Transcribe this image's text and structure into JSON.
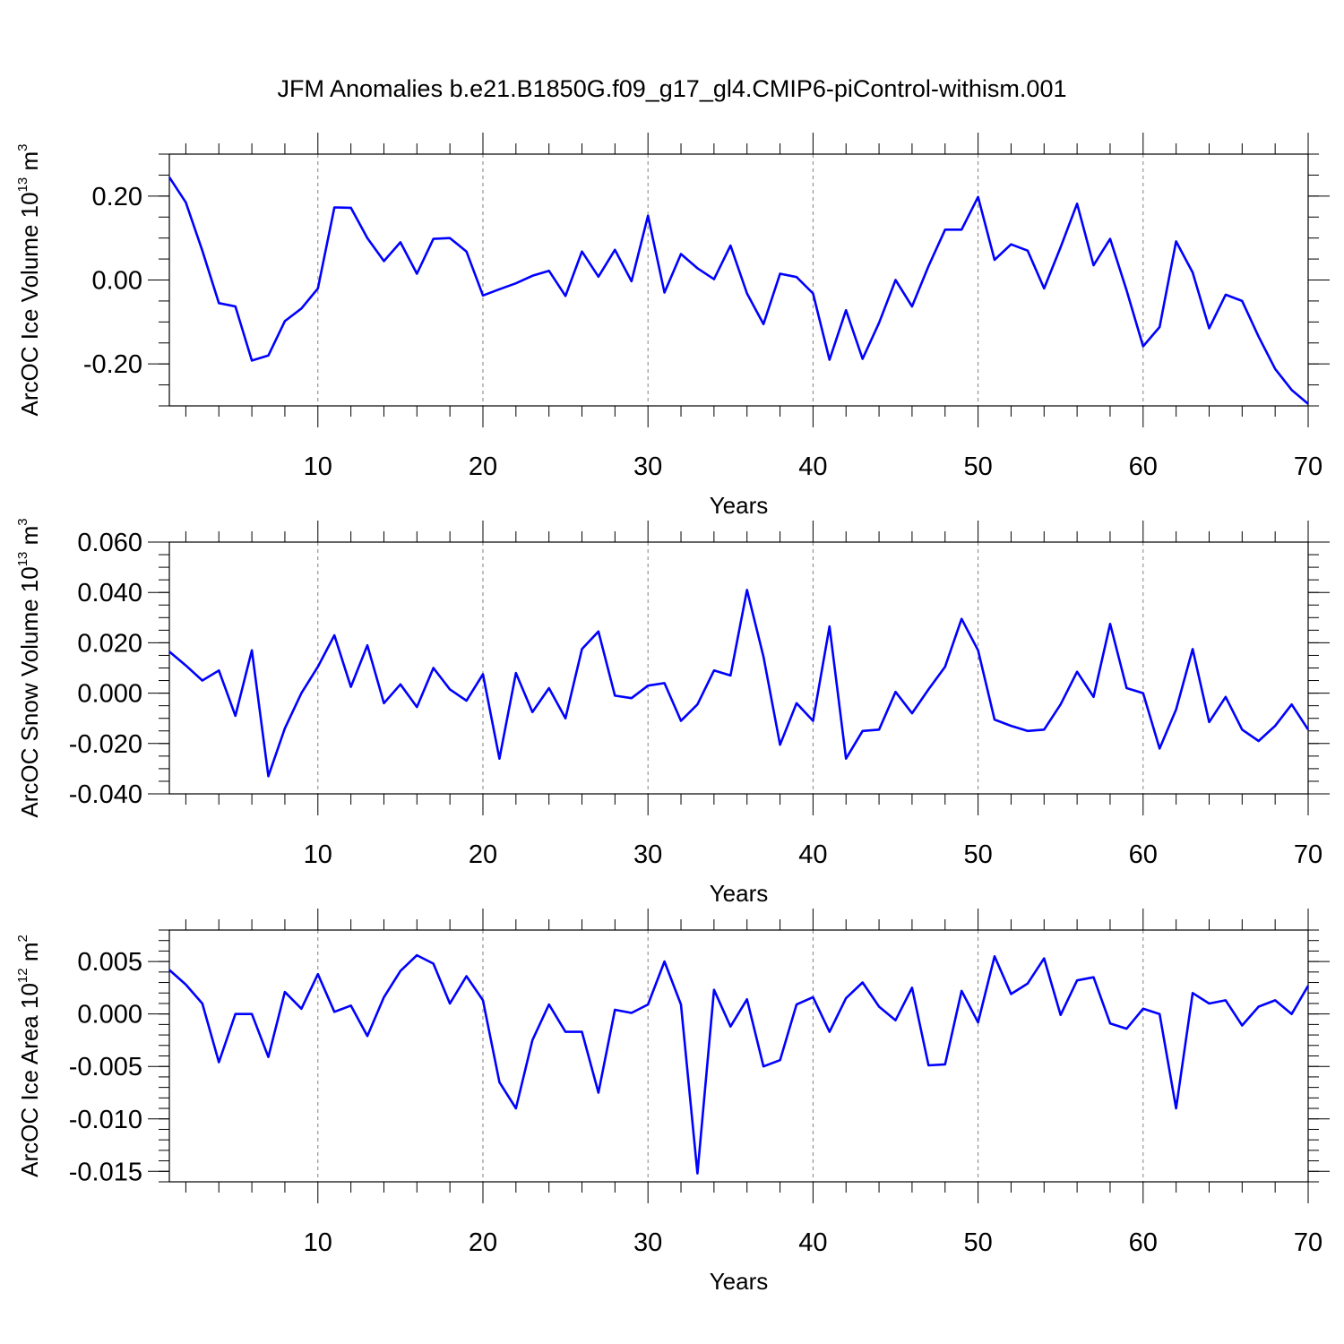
{
  "title": "JFM Anomalies b.e21.B1850G.f09_g17_gl4.CMIP6-piControl-withism.001",
  "colors": {
    "line": "#0000ff",
    "axis": "#000000",
    "grid": "#808080"
  },
  "chart_data": [
    {
      "type": "line",
      "name": "ice-volume",
      "ylabel_main": "ArcOC Ice Volume 10",
      "ylabel_exp": "13",
      "ylabel_unit": " m",
      "ylabel_unit_exp": "3",
      "xlabel": "Years",
      "xlim": [
        1,
        70
      ],
      "ylim": [
        -0.3,
        0.3
      ],
      "xticks": [
        10,
        20,
        30,
        40,
        50,
        60,
        70
      ],
      "xtick_labels": [
        "10",
        "20",
        "30",
        "40",
        "50",
        "60",
        "70"
      ],
      "yticks": [
        -0.2,
        0.0,
        0.2
      ],
      "ytick_labels": [
        "-0.20",
        "0.00",
        "0.20"
      ],
      "yminor_step": 0.05,
      "x": [
        1,
        2,
        3,
        4,
        5,
        6,
        7,
        8,
        9,
        10,
        11,
        12,
        13,
        14,
        15,
        16,
        17,
        18,
        19,
        20,
        21,
        22,
        23,
        24,
        25,
        26,
        27,
        28,
        29,
        30,
        31,
        32,
        33,
        34,
        35,
        36,
        37,
        38,
        39,
        40,
        41,
        42,
        43,
        44,
        45,
        46,
        47,
        48,
        49,
        50,
        51,
        52,
        53,
        54,
        55,
        56,
        57,
        58,
        59,
        60,
        61,
        62,
        63,
        64,
        65,
        66,
        67,
        68,
        69,
        70
      ],
      "values": [
        0.245,
        0.185,
        0.07,
        -0.055,
        -0.063,
        -0.192,
        -0.18,
        -0.098,
        -0.068,
        -0.02,
        0.173,
        0.172,
        0.1,
        0.045,
        0.09,
        0.015,
        0.098,
        0.1,
        0.068,
        -0.037,
        -0.022,
        -0.008,
        0.01,
        0.022,
        -0.038,
        0.068,
        0.008,
        0.072,
        -0.003,
        0.153,
        -0.03,
        0.062,
        0.028,
        0.002,
        0.082,
        -0.032,
        -0.105,
        0.015,
        0.007,
        -0.032,
        -0.19,
        -0.072,
        -0.188,
        -0.102,
        0.0,
        -0.063,
        0.033,
        0.12,
        0.12,
        0.198,
        0.048,
        0.085,
        0.07,
        -0.02,
        0.078,
        0.182,
        0.035,
        0.098,
        -0.025,
        -0.158,
        -0.112,
        0.092,
        0.018,
        -0.115,
        -0.035,
        -0.05,
        -0.135,
        -0.212,
        -0.262,
        -0.295
      ]
    },
    {
      "type": "line",
      "name": "snow-volume",
      "ylabel_main": "ArcOC Snow Volume 10",
      "ylabel_exp": "13",
      "ylabel_unit": " m",
      "ylabel_unit_exp": "3",
      "xlabel": "Years",
      "xlim": [
        1,
        70
      ],
      "ylim": [
        -0.04,
        0.06
      ],
      "xticks": [
        10,
        20,
        30,
        40,
        50,
        60,
        70
      ],
      "xtick_labels": [
        "10",
        "20",
        "30",
        "40",
        "50",
        "60",
        "70"
      ],
      "yticks": [
        -0.04,
        -0.02,
        0.0,
        0.02,
        0.04,
        0.06
      ],
      "ytick_labels": [
        "-0.040",
        "-0.020",
        "0.000",
        "0.020",
        "0.040",
        "0.060"
      ],
      "yminor_step": 0.005,
      "x": [
        1,
        2,
        3,
        4,
        5,
        6,
        7,
        8,
        9,
        10,
        11,
        12,
        13,
        14,
        15,
        16,
        17,
        18,
        19,
        20,
        21,
        22,
        23,
        24,
        25,
        26,
        27,
        28,
        29,
        30,
        31,
        32,
        33,
        34,
        35,
        36,
        37,
        38,
        39,
        40,
        41,
        42,
        43,
        44,
        45,
        46,
        47,
        48,
        49,
        50,
        51,
        52,
        53,
        54,
        55,
        56,
        57,
        58,
        59,
        60,
        61,
        62,
        63,
        64,
        65,
        66,
        67,
        68,
        69,
        70
      ],
      "values": [
        0.0165,
        0.011,
        0.005,
        0.009,
        -0.009,
        0.017,
        -0.033,
        -0.014,
        0.0,
        0.0105,
        0.023,
        0.0025,
        0.019,
        -0.004,
        0.0035,
        -0.0055,
        0.01,
        0.0015,
        -0.003,
        0.0075,
        -0.026,
        0.008,
        -0.0075,
        0.002,
        -0.01,
        0.0175,
        0.0245,
        -0.001,
        -0.002,
        0.003,
        0.004,
        -0.011,
        -0.0045,
        0.009,
        0.007,
        0.041,
        0.0145,
        -0.0205,
        -0.004,
        -0.011,
        0.0265,
        -0.026,
        -0.015,
        -0.0145,
        0.0005,
        -0.008,
        0.0015,
        0.0105,
        0.0295,
        0.017,
        -0.0105,
        -0.013,
        -0.015,
        -0.0145,
        -0.0045,
        0.0085,
        -0.0015,
        0.0275,
        0.002,
        0.0,
        -0.022,
        -0.0065,
        0.0175,
        -0.0115,
        -0.0015,
        -0.0145,
        -0.019,
        -0.013,
        -0.0045,
        -0.0145
      ]
    },
    {
      "type": "line",
      "name": "ice-area",
      "ylabel_main": "ArcOC Ice Area 10",
      "ylabel_exp": "12",
      "ylabel_unit": " m",
      "ylabel_unit_exp": "2",
      "xlabel": "Years",
      "xlim": [
        1,
        70
      ],
      "ylim": [
        -0.016,
        0.008
      ],
      "xticks": [
        10,
        20,
        30,
        40,
        50,
        60,
        70
      ],
      "xtick_labels": [
        "10",
        "20",
        "30",
        "40",
        "50",
        "60",
        "70"
      ],
      "yticks": [
        -0.015,
        -0.01,
        -0.005,
        0.0,
        0.005
      ],
      "ytick_labels": [
        "-0.015",
        "-0.010",
        "-0.005",
        "0.000",
        "0.005"
      ],
      "yminor_step": 0.001,
      "x": [
        1,
        2,
        3,
        4,
        5,
        6,
        7,
        8,
        9,
        10,
        11,
        12,
        13,
        14,
        15,
        16,
        17,
        18,
        19,
        20,
        21,
        22,
        23,
        24,
        25,
        26,
        27,
        28,
        29,
        30,
        31,
        32,
        33,
        34,
        35,
        36,
        37,
        38,
        39,
        40,
        41,
        42,
        43,
        44,
        45,
        46,
        47,
        48,
        49,
        50,
        51,
        52,
        53,
        54,
        55,
        56,
        57,
        58,
        59,
        60,
        61,
        62,
        63,
        64,
        65,
        66,
        67,
        68,
        69,
        70
      ],
      "values": [
        0.0042,
        0.0028,
        0.001,
        -0.0046,
        0.0,
        0.0,
        -0.0041,
        0.0021,
        0.0005,
        0.0038,
        0.0002,
        0.0008,
        -0.0021,
        0.0016,
        0.0041,
        0.0056,
        0.0048,
        0.001,
        0.0036,
        0.0013,
        -0.0065,
        -0.009,
        -0.0025,
        0.0009,
        -0.0017,
        -0.0017,
        -0.0075,
        0.0004,
        0.0001,
        0.0009,
        0.005,
        0.0009,
        -0.0152,
        0.0023,
        -0.0012,
        0.0014,
        -0.005,
        -0.0044,
        0.0009,
        0.0016,
        -0.0017,
        0.0015,
        0.003,
        0.0007,
        -0.0006,
        0.0025,
        -0.0049,
        -0.0048,
        0.0022,
        -0.0008,
        0.0055,
        0.0019,
        0.0029,
        0.0053,
        -0.0001,
        0.0032,
        0.0035,
        -0.0009,
        -0.0014,
        0.0005,
        0.0,
        -0.009,
        0.002,
        0.001,
        0.0013,
        -0.0011,
        0.0007,
        0.0013,
        0.0,
        0.0027
      ]
    }
  ]
}
